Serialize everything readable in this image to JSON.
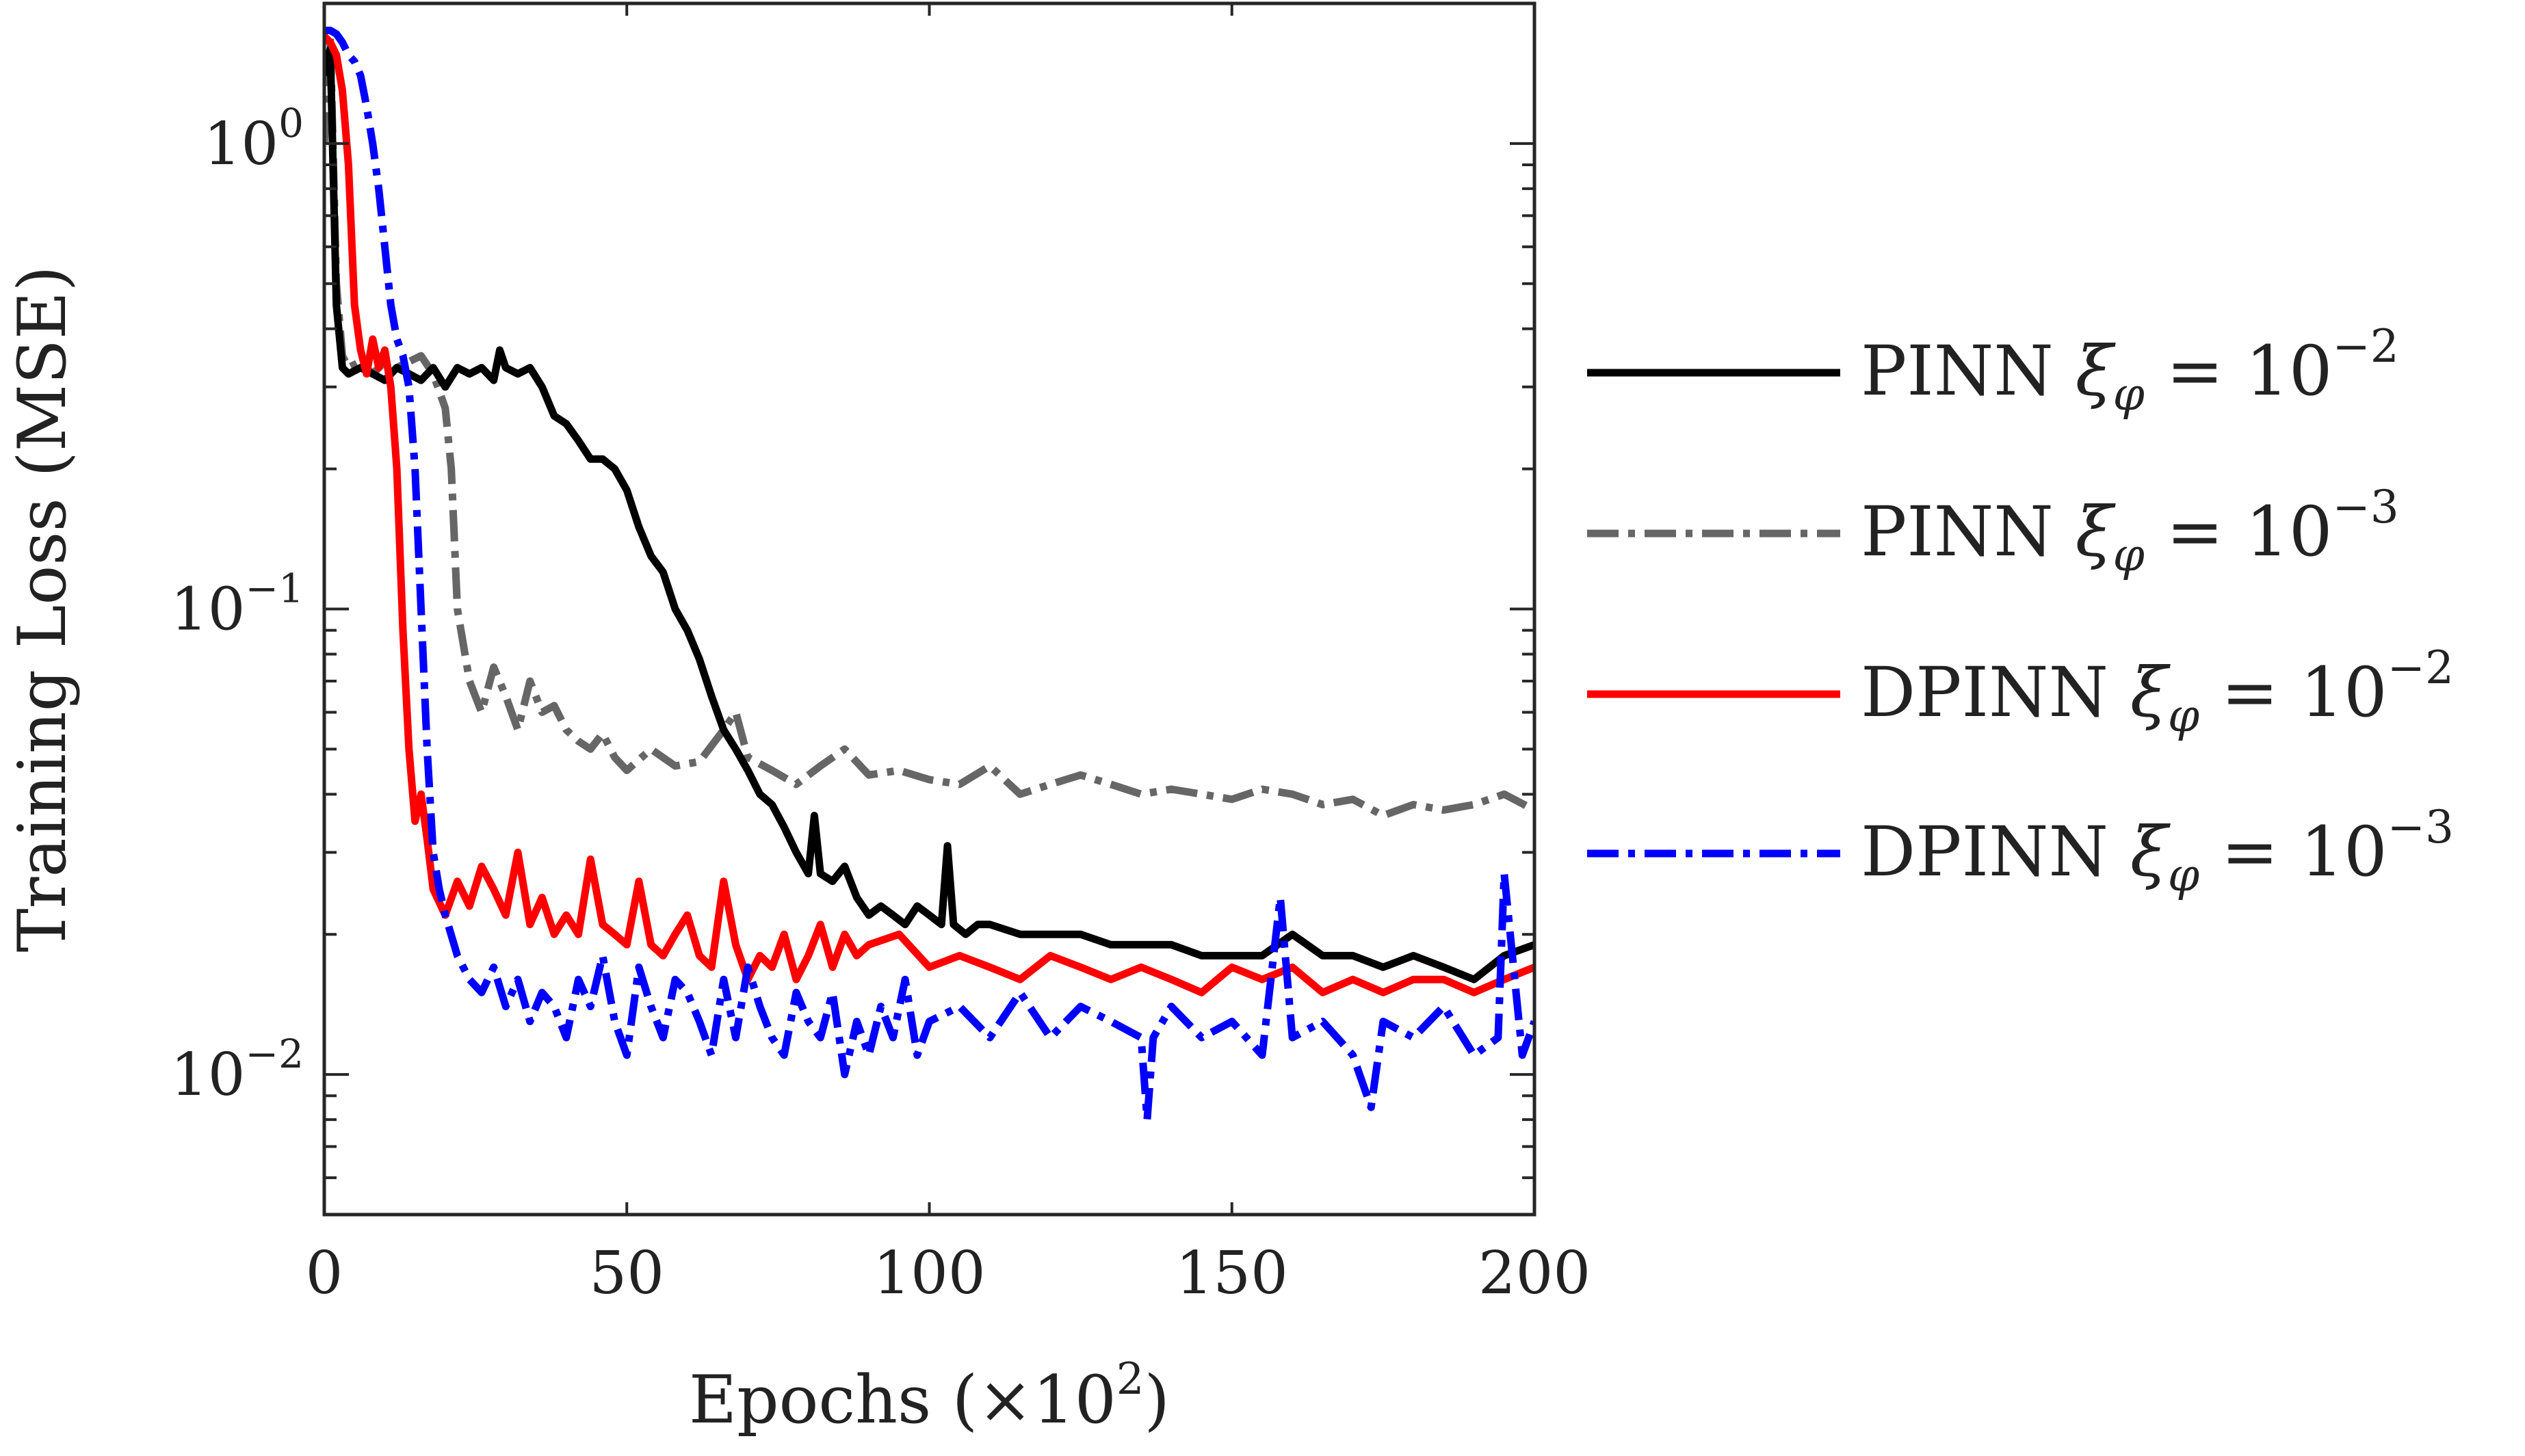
{
  "chart_data": {
    "type": "line",
    "title": "",
    "xlabel": "Epochs (×10^2)",
    "xlabel_parts": {
      "text": "Epochs (×10",
      "exp": "2",
      "close": ")"
    },
    "ylabel": "Training Loss (MSE)",
    "xscale": "linear",
    "yscale": "log",
    "xlim": [
      0,
      200
    ],
    "ylim": [
      0.005,
      2
    ],
    "grid": false,
    "legend_position": "right-outside",
    "x_ticks": [
      {
        "value": 0,
        "label": "0"
      },
      {
        "value": 50,
        "label": "50"
      },
      {
        "value": 100,
        "label": "100"
      },
      {
        "value": 150,
        "label": "150"
      },
      {
        "value": 200,
        "label": "200"
      }
    ],
    "y_ticks": [
      {
        "value": 1,
        "base": "10",
        "exp": "0"
      },
      {
        "value": 0.1,
        "base": "10",
        "exp": "−1"
      },
      {
        "value": 0.01,
        "base": "10",
        "exp": "−2"
      }
    ],
    "series": [
      {
        "name": "PINN ξφ = 10^-2",
        "legend": {
          "model": "PINN",
          "symbol": "ξ",
          "sub": "φ",
          "eq": "=",
          "base": "10",
          "exp": "−2"
        },
        "color": "#000000",
        "dash": "solid",
        "x": [
          0,
          1,
          2,
          3,
          4,
          6,
          8,
          10,
          12,
          14,
          16,
          18,
          20,
          22,
          24,
          26,
          28,
          29,
          30,
          32,
          34,
          36,
          38,
          40,
          42,
          44,
          46,
          48,
          50,
          52,
          54,
          56,
          58,
          60,
          62,
          64,
          66,
          68,
          70,
          72,
          74,
          76,
          78,
          80,
          81,
          82,
          84,
          86,
          88,
          90,
          92,
          94,
          96,
          98,
          100,
          102,
          103,
          104,
          106,
          108,
          110,
          115,
          120,
          125,
          130,
          135,
          140,
          145,
          150,
          155,
          160,
          165,
          170,
          175,
          180,
          185,
          190,
          195,
          200
        ],
        "values": [
          1.4,
          1.6,
          0.45,
          0.33,
          0.32,
          0.33,
          0.32,
          0.31,
          0.33,
          0.32,
          0.31,
          0.33,
          0.3,
          0.33,
          0.32,
          0.33,
          0.31,
          0.36,
          0.33,
          0.32,
          0.33,
          0.3,
          0.26,
          0.25,
          0.23,
          0.21,
          0.21,
          0.2,
          0.18,
          0.15,
          0.13,
          0.12,
          0.1,
          0.09,
          0.078,
          0.065,
          0.055,
          0.05,
          0.045,
          0.04,
          0.038,
          0.034,
          0.03,
          0.027,
          0.036,
          0.027,
          0.026,
          0.028,
          0.024,
          0.022,
          0.023,
          0.022,
          0.021,
          0.023,
          0.022,
          0.021,
          0.031,
          0.021,
          0.02,
          0.021,
          0.021,
          0.02,
          0.02,
          0.02,
          0.019,
          0.019,
          0.019,
          0.018,
          0.018,
          0.018,
          0.02,
          0.018,
          0.018,
          0.017,
          0.018,
          0.017,
          0.016,
          0.018,
          0.019
        ]
      },
      {
        "name": "PINN ξφ = 10^-3",
        "legend": {
          "model": "PINN",
          "symbol": "ξ",
          "sub": "φ",
          "eq": "=",
          "base": "10",
          "exp": "−3"
        },
        "color": "#666666",
        "dash": "dashdot",
        "x": [
          0,
          1,
          2,
          3,
          4,
          6,
          8,
          10,
          12,
          14,
          16,
          18,
          20,
          21,
          22,
          24,
          26,
          28,
          30,
          32,
          34,
          36,
          38,
          40,
          42,
          44,
          46,
          48,
          50,
          54,
          58,
          62,
          66,
          68,
          70,
          74,
          78,
          82,
          86,
          90,
          95,
          100,
          105,
          110,
          115,
          120,
          125,
          130,
          135,
          140,
          145,
          150,
          155,
          160,
          165,
          170,
          175,
          180,
          185,
          190,
          195,
          200
        ],
        "values": [
          1.0,
          1.7,
          0.5,
          0.35,
          0.33,
          0.34,
          0.32,
          0.34,
          0.33,
          0.34,
          0.35,
          0.32,
          0.27,
          0.2,
          0.1,
          0.07,
          0.06,
          0.075,
          0.065,
          0.055,
          0.07,
          0.06,
          0.062,
          0.055,
          0.052,
          0.05,
          0.054,
          0.048,
          0.045,
          0.05,
          0.046,
          0.047,
          0.055,
          0.06,
          0.048,
          0.045,
          0.042,
          0.046,
          0.05,
          0.044,
          0.045,
          0.043,
          0.042,
          0.046,
          0.04,
          0.042,
          0.044,
          0.042,
          0.04,
          0.041,
          0.04,
          0.039,
          0.041,
          0.04,
          0.038,
          0.039,
          0.036,
          0.038,
          0.037,
          0.038,
          0.04,
          0.037
        ]
      },
      {
        "name": "DPINN ξφ = 10^-2",
        "legend": {
          "model": "DPINN",
          "symbol": "ξ",
          "sub": "φ",
          "eq": "=",
          "base": "10",
          "exp": "−2"
        },
        "color": "#ff0000",
        "dash": "solid",
        "x": [
          0,
          1,
          2,
          3,
          4,
          5,
          6,
          7,
          8,
          9,
          10,
          11,
          12,
          13,
          14,
          15,
          16,
          17,
          18,
          20,
          22,
          24,
          26,
          28,
          30,
          32,
          34,
          36,
          38,
          40,
          42,
          44,
          46,
          48,
          50,
          52,
          54,
          56,
          58,
          60,
          62,
          64,
          66,
          68,
          70,
          72,
          74,
          76,
          78,
          80,
          82,
          84,
          86,
          88,
          90,
          95,
          100,
          105,
          110,
          115,
          120,
          125,
          130,
          135,
          140,
          145,
          150,
          155,
          160,
          165,
          170,
          175,
          180,
          185,
          190,
          195,
          200
        ],
        "values": [
          1.7,
          1.65,
          1.55,
          1.3,
          0.9,
          0.45,
          0.36,
          0.32,
          0.38,
          0.33,
          0.36,
          0.3,
          0.2,
          0.09,
          0.05,
          0.035,
          0.04,
          0.032,
          0.025,
          0.022,
          0.026,
          0.023,
          0.028,
          0.025,
          0.022,
          0.03,
          0.021,
          0.024,
          0.02,
          0.022,
          0.02,
          0.029,
          0.021,
          0.02,
          0.019,
          0.026,
          0.019,
          0.018,
          0.02,
          0.022,
          0.018,
          0.017,
          0.026,
          0.019,
          0.016,
          0.018,
          0.017,
          0.02,
          0.016,
          0.018,
          0.021,
          0.017,
          0.02,
          0.018,
          0.019,
          0.02,
          0.017,
          0.018,
          0.017,
          0.016,
          0.018,
          0.017,
          0.016,
          0.017,
          0.016,
          0.015,
          0.017,
          0.016,
          0.017,
          0.015,
          0.016,
          0.015,
          0.016,
          0.016,
          0.015,
          0.016,
          0.017
        ]
      },
      {
        "name": "DPINN ξφ = 10^-3",
        "legend": {
          "model": "DPINN",
          "symbol": "ξ",
          "sub": "φ",
          "eq": "=",
          "base": "10",
          "exp": "−3"
        },
        "color": "#0000ff",
        "dash": "dashdot",
        "x": [
          0,
          1,
          2,
          3,
          4,
          5,
          6,
          7,
          8,
          9,
          10,
          11,
          12,
          13,
          14,
          15,
          16,
          17,
          18,
          19,
          20,
          22,
          24,
          26,
          28,
          30,
          32,
          34,
          36,
          38,
          40,
          42,
          44,
          46,
          48,
          50,
          52,
          54,
          56,
          58,
          60,
          62,
          64,
          66,
          68,
          70,
          72,
          74,
          76,
          78,
          80,
          82,
          84,
          86,
          88,
          90,
          92,
          94,
          96,
          98,
          100,
          105,
          110,
          115,
          120,
          125,
          130,
          135,
          136,
          137,
          140,
          145,
          150,
          155,
          158,
          160,
          165,
          170,
          173,
          175,
          180,
          185,
          190,
          194,
          195,
          198,
          200
        ],
        "values": [
          1.75,
          1.75,
          1.72,
          1.65,
          1.55,
          1.5,
          1.4,
          1.2,
          1.0,
          0.8,
          0.6,
          0.45,
          0.38,
          0.35,
          0.3,
          0.2,
          0.1,
          0.05,
          0.03,
          0.025,
          0.022,
          0.018,
          0.016,
          0.015,
          0.017,
          0.014,
          0.016,
          0.013,
          0.015,
          0.014,
          0.012,
          0.016,
          0.014,
          0.018,
          0.013,
          0.011,
          0.017,
          0.014,
          0.012,
          0.016,
          0.015,
          0.013,
          0.011,
          0.016,
          0.012,
          0.017,
          0.014,
          0.012,
          0.011,
          0.015,
          0.013,
          0.012,
          0.015,
          0.01,
          0.013,
          0.011,
          0.014,
          0.012,
          0.016,
          0.011,
          0.013,
          0.014,
          0.012,
          0.015,
          0.012,
          0.014,
          0.013,
          0.012,
          0.008,
          0.012,
          0.014,
          0.012,
          0.013,
          0.011,
          0.024,
          0.012,
          0.013,
          0.011,
          0.0085,
          0.013,
          0.012,
          0.014,
          0.011,
          0.012,
          0.027,
          0.011,
          0.013
        ]
      }
    ]
  }
}
